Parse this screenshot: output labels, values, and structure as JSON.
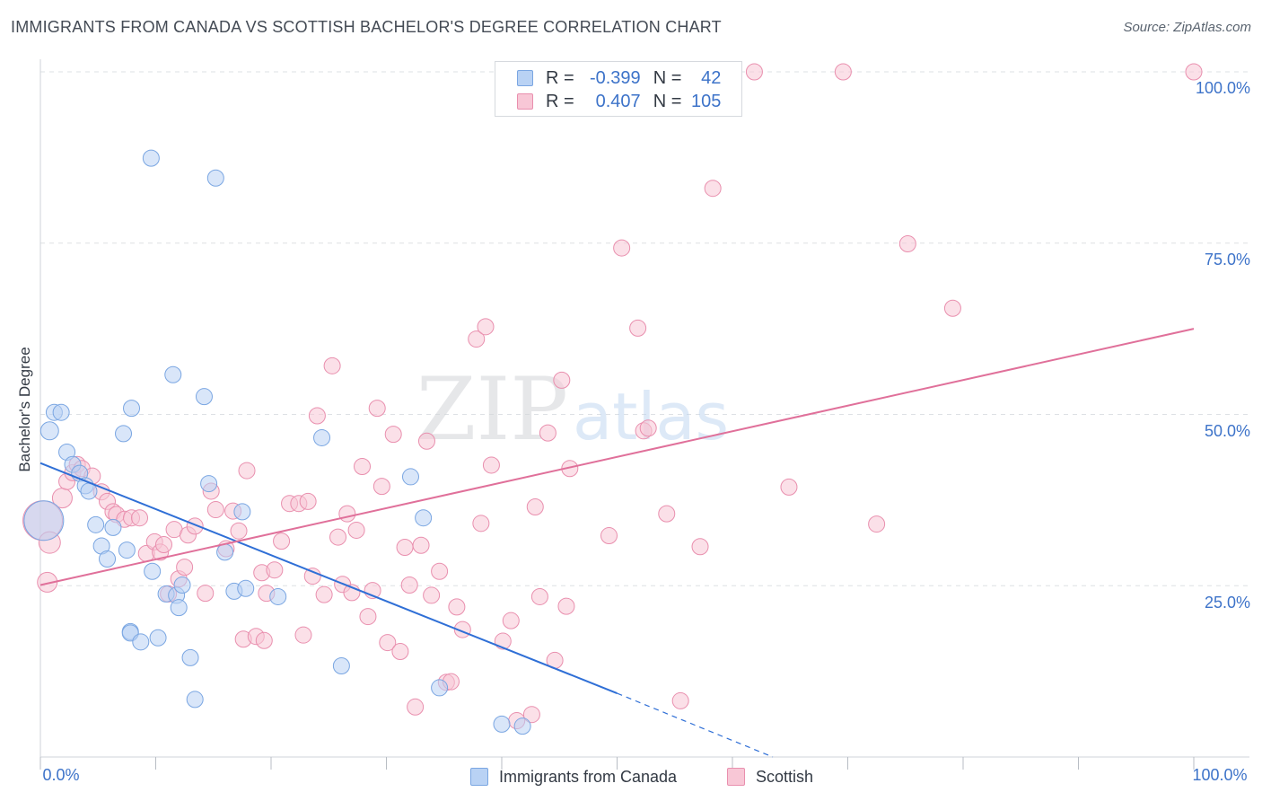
{
  "header": {
    "title": "IMMIGRANTS FROM CANADA VS SCOTTISH BACHELOR'S DEGREE CORRELATION CHART",
    "source": "Source: ZipAtlas.com"
  },
  "watermark": {
    "part1": "ZIP",
    "part2": "atlas"
  },
  "legend": {
    "r_label": "R =",
    "n_label": "N =",
    "series": [
      {
        "name": "Immigrants from Canada",
        "r": "-0.399",
        "n": "42"
      },
      {
        "name": "Scottish",
        "r": "0.407",
        "n": "105"
      }
    ]
  },
  "colors": {
    "blue_fill": "#b9d2f4",
    "blue_stroke": "#7aa6e2",
    "blue_line": "#2f6fd6",
    "pink_fill": "#f8c7d6",
    "pink_stroke": "#e98fae",
    "pink_line": "#e0709a",
    "axis_text": "#3d73c9",
    "grid": "#dde0e4"
  },
  "chart_data": {
    "type": "scatter",
    "title": "IMMIGRANTS FROM CANADA VS SCOTTISH BACHELOR'S DEGREE CORRELATION CHART",
    "xlabel": "",
    "ylabel": "Bachelor's Degree",
    "xlim": [
      0,
      100
    ],
    "ylim": [
      0,
      100
    ],
    "x_tick_labels": [
      "0.0%",
      "100.0%"
    ],
    "y_ticks": [
      25,
      50,
      75,
      100
    ],
    "y_tick_labels": [
      "25.0%",
      "50.0%",
      "75.0%",
      "100.0%"
    ],
    "grid": true,
    "legend_position": "top-center",
    "series": [
      {
        "name": "Immigrants from Canada",
        "trend": {
          "x0": 0,
          "y0": 42.9,
          "x1": 50.0,
          "y1": 9.3,
          "dash_x1": 63.5,
          "dash_y1": 0.0
        },
        "points": [
          [
            0.3,
            34.5,
            22
          ],
          [
            0.8,
            47.6,
            10
          ],
          [
            1.2,
            50.3,
            9
          ],
          [
            1.8,
            50.3,
            9
          ],
          [
            2.3,
            44.5,
            9
          ],
          [
            2.8,
            42.7,
            9
          ],
          [
            3.4,
            41.4,
            9
          ],
          [
            3.9,
            39.6,
            9
          ],
          [
            4.2,
            38.8,
            9
          ],
          [
            4.8,
            33.9,
            9
          ],
          [
            5.3,
            30.8,
            9
          ],
          [
            5.8,
            28.9,
            9
          ],
          [
            6.3,
            33.5,
            9
          ],
          [
            7.2,
            47.2,
            9
          ],
          [
            7.5,
            30.2,
            9
          ],
          [
            7.8,
            18.3,
            9
          ],
          [
            7.8,
            18.1,
            9
          ],
          [
            7.9,
            50.9,
            9
          ],
          [
            8.7,
            16.8,
            9
          ],
          [
            9.6,
            87.4,
            9
          ],
          [
            9.7,
            27.1,
            9
          ],
          [
            10.2,
            17.4,
            9
          ],
          [
            10.9,
            23.8,
            9
          ],
          [
            11.5,
            55.8,
            9
          ],
          [
            11.8,
            23.6,
            9
          ],
          [
            12.0,
            21.8,
            9
          ],
          [
            12.3,
            25.1,
            9
          ],
          [
            13.0,
            14.5,
            9
          ],
          [
            13.4,
            8.4,
            9
          ],
          [
            14.2,
            52.6,
            9
          ],
          [
            14.6,
            39.9,
            9
          ],
          [
            15.2,
            84.5,
            9
          ],
          [
            16.0,
            29.9,
            9
          ],
          [
            16.8,
            24.2,
            9
          ],
          [
            17.5,
            35.8,
            9
          ],
          [
            17.8,
            24.6,
            9
          ],
          [
            20.6,
            23.4,
            9
          ],
          [
            24.4,
            46.6,
            9
          ],
          [
            26.1,
            13.3,
            9
          ],
          [
            32.1,
            40.9,
            9
          ],
          [
            33.2,
            34.9,
            9
          ],
          [
            34.6,
            10.1,
            9
          ],
          [
            40.0,
            4.8,
            9
          ],
          [
            41.8,
            4.5,
            9
          ]
        ]
      },
      {
        "name": "Scottish",
        "trend": {
          "x0": 0,
          "y0": 25.1,
          "x1": 100,
          "y1": 62.5
        },
        "points": [
          [
            0.2,
            34.5,
            22
          ],
          [
            0.6,
            25.5,
            11
          ],
          [
            0.8,
            31.3,
            12
          ],
          [
            1.9,
            37.8,
            11
          ],
          [
            2.3,
            40.2,
            9
          ],
          [
            2.8,
            41.5,
            9
          ],
          [
            3.2,
            42.7,
            9
          ],
          [
            3.6,
            42.1,
            9
          ],
          [
            4.5,
            41.0,
            9
          ],
          [
            5.3,
            38.7,
            9
          ],
          [
            5.8,
            37.3,
            9
          ],
          [
            6.3,
            35.8,
            9
          ],
          [
            6.6,
            35.4,
            9
          ],
          [
            7.3,
            34.7,
            9
          ],
          [
            7.9,
            34.9,
            9
          ],
          [
            8.6,
            34.9,
            9
          ],
          [
            9.2,
            29.7,
            9
          ],
          [
            9.9,
            31.4,
            9
          ],
          [
            10.4,
            29.9,
            9
          ],
          [
            10.7,
            31.0,
            9
          ],
          [
            11.1,
            23.8,
            9
          ],
          [
            11.6,
            33.2,
            9
          ],
          [
            12.0,
            26.0,
            9
          ],
          [
            12.5,
            27.7,
            9
          ],
          [
            12.8,
            32.4,
            9
          ],
          [
            13.4,
            33.7,
            9
          ],
          [
            14.3,
            23.9,
            9
          ],
          [
            14.8,
            38.8,
            9
          ],
          [
            15.2,
            36.1,
            9
          ],
          [
            16.1,
            30.4,
            9
          ],
          [
            16.7,
            35.9,
            9
          ],
          [
            17.2,
            33.0,
            9
          ],
          [
            17.6,
            17.2,
            9
          ],
          [
            17.9,
            41.8,
            9
          ],
          [
            18.7,
            17.6,
            9
          ],
          [
            19.2,
            26.9,
            9
          ],
          [
            19.4,
            17.0,
            9
          ],
          [
            19.6,
            23.9,
            9
          ],
          [
            20.3,
            27.3,
            9
          ],
          [
            20.9,
            31.5,
            9
          ],
          [
            21.6,
            37.0,
            9
          ],
          [
            22.4,
            37.0,
            9
          ],
          [
            22.8,
            17.8,
            9
          ],
          [
            23.2,
            37.3,
            9
          ],
          [
            23.6,
            26.4,
            9
          ],
          [
            24.0,
            49.8,
            9
          ],
          [
            24.6,
            23.7,
            9
          ],
          [
            25.3,
            57.1,
            9
          ],
          [
            25.8,
            32.1,
            9
          ],
          [
            26.2,
            25.2,
            9
          ],
          [
            26.6,
            35.5,
            9
          ],
          [
            27.0,
            24.0,
            9
          ],
          [
            27.4,
            33.1,
            9
          ],
          [
            27.9,
            42.4,
            9
          ],
          [
            28.4,
            20.5,
            9
          ],
          [
            28.8,
            24.3,
            9
          ],
          [
            29.2,
            50.9,
            9
          ],
          [
            29.6,
            39.5,
            9
          ],
          [
            30.1,
            16.7,
            9
          ],
          [
            30.6,
            47.1,
            9
          ],
          [
            31.2,
            15.4,
            9
          ],
          [
            31.6,
            30.6,
            9
          ],
          [
            32.0,
            25.1,
            9
          ],
          [
            32.5,
            7.3,
            9
          ],
          [
            33.0,
            30.9,
            9
          ],
          [
            33.5,
            46.1,
            9
          ],
          [
            33.9,
            23.6,
            9
          ],
          [
            34.6,
            27.1,
            9
          ],
          [
            35.2,
            10.9,
            9
          ],
          [
            35.6,
            11.0,
            9
          ],
          [
            36.1,
            21.9,
            9
          ],
          [
            36.6,
            18.6,
            9
          ],
          [
            37.8,
            61.0,
            9
          ],
          [
            38.2,
            34.1,
            9
          ],
          [
            38.6,
            62.8,
            9
          ],
          [
            39.1,
            42.6,
            9
          ],
          [
            40.1,
            16.9,
            9
          ],
          [
            40.8,
            19.9,
            9
          ],
          [
            41.3,
            5.3,
            9
          ],
          [
            42.6,
            6.2,
            9
          ],
          [
            42.9,
            36.5,
            9
          ],
          [
            43.3,
            23.4,
            9
          ],
          [
            44.0,
            47.3,
            9
          ],
          [
            44.6,
            14.1,
            9
          ],
          [
            45.2,
            55.0,
            9
          ],
          [
            45.6,
            22.0,
            9
          ],
          [
            45.9,
            42.1,
            9
          ],
          [
            49.3,
            32.3,
            9
          ],
          [
            50.4,
            74.3,
            9
          ],
          [
            51.8,
            62.6,
            9
          ],
          [
            52.3,
            47.6,
            9
          ],
          [
            52.7,
            48.0,
            9
          ],
          [
            54.3,
            35.5,
            9
          ],
          [
            55.5,
            8.2,
            9
          ],
          [
            57.2,
            30.7,
            9
          ],
          [
            58.3,
            83.0,
            9
          ],
          [
            61.9,
            100.0,
            9
          ],
          [
            64.9,
            39.4,
            9
          ],
          [
            69.6,
            100.0,
            9
          ],
          [
            72.5,
            34.0,
            9
          ],
          [
            75.2,
            74.9,
            9
          ],
          [
            79.1,
            65.5,
            9
          ],
          [
            100.0,
            100.0,
            9
          ]
        ]
      }
    ]
  }
}
